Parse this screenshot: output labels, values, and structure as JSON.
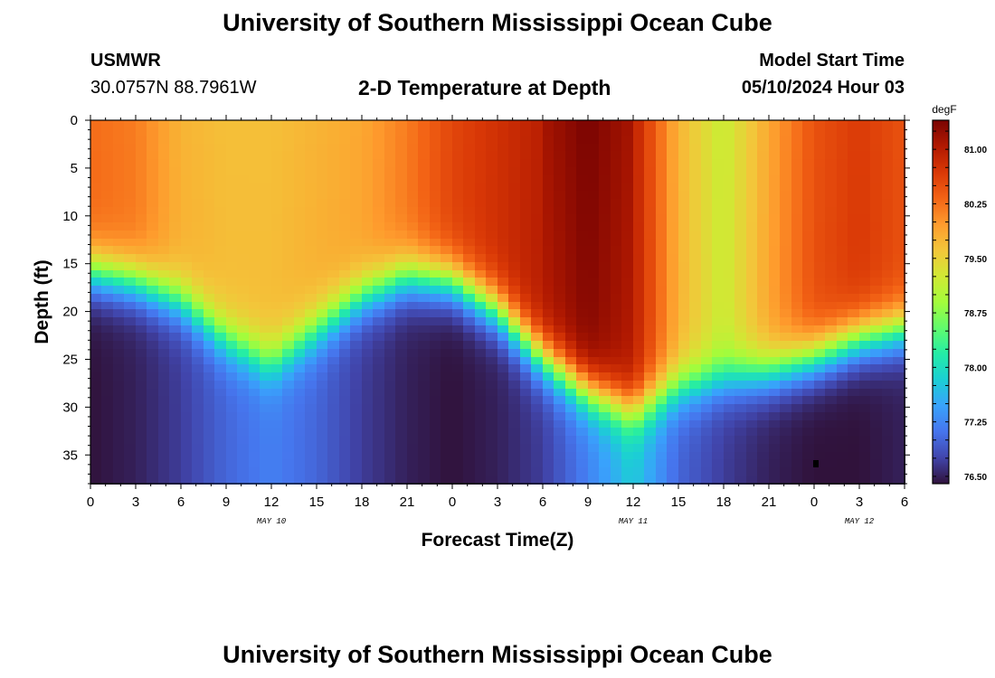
{
  "header": {
    "title": "University of Southern Mississippi Ocean Cube",
    "station": "USMWR",
    "coords": "30.0757N  88.7961W",
    "subtitle": "2-D Temperature at Depth",
    "start_label": "Model Start Time",
    "start_time": "05/10/2024 Hour 03"
  },
  "footer": {
    "title": "University of Southern Mississippi Ocean Cube"
  },
  "chart_data": {
    "type": "heatmap",
    "xlabel": "Forecast Time(Z)",
    "ylabel": "Depth (ft)",
    "x_hours_range": [
      0,
      54
    ],
    "y_depth_range": [
      0,
      38
    ],
    "x_tick_labels": [
      "0",
      "3",
      "6",
      "9",
      "12",
      "15",
      "18",
      "21",
      "0",
      "3",
      "6",
      "9",
      "12",
      "15",
      "18",
      "21",
      "0",
      "3",
      "6"
    ],
    "y_ticks": [
      0,
      5,
      10,
      15,
      20,
      25,
      30,
      35
    ],
    "date_labels": [
      {
        "label": "MAY 10",
        "hour": 12
      },
      {
        "label": "MAY 11",
        "hour": 36
      },
      {
        "label": "MAY 12",
        "hour": 51
      }
    ],
    "colorbar": {
      "unit": "degF",
      "min": 76.4,
      "max": 81.4,
      "ticks": [
        "81.00",
        "80.25",
        "79.50",
        "78.75",
        "78.00",
        "77.25",
        "76.50"
      ]
    },
    "colormap": [
      "#30123b",
      "#4145ab",
      "#4675ed",
      "#39a2fc",
      "#1bcfd4",
      "#24eca6",
      "#61fc6c",
      "#a4fc3b",
      "#d1e834",
      "#f3c63a",
      "#fe9b2d",
      "#f36315",
      "#d93806",
      "#b11901",
      "#7a0402"
    ],
    "profile_hours": [
      0,
      3,
      6,
      9,
      12,
      15,
      18,
      21,
      24,
      27,
      30,
      33,
      36,
      39,
      42,
      45,
      48,
      51,
      54
    ],
    "warm_layer_base_ft": [
      16,
      17,
      19,
      23,
      25.5,
      22,
      18.5,
      16.5,
      17,
      20,
      25,
      28.5,
      30.5,
      28,
      27,
      26.5,
      25,
      23,
      22
    ],
    "surface_temp_degF": [
      80.3,
      80.2,
      79.8,
      79.7,
      79.7,
      79.8,
      79.9,
      80.2,
      80.6,
      80.8,
      81.0,
      81.3,
      81.0,
      79.8,
      79.2,
      79.9,
      80.5,
      80.7,
      80.5
    ],
    "bottom_temp_degF": [
      76.4,
      76.5,
      76.7,
      77.0,
      77.2,
      77.0,
      76.7,
      76.5,
      76.4,
      76.5,
      76.7,
      77.2,
      77.8,
      77.0,
      76.7,
      76.5,
      76.4,
      76.4,
      76.5
    ]
  }
}
